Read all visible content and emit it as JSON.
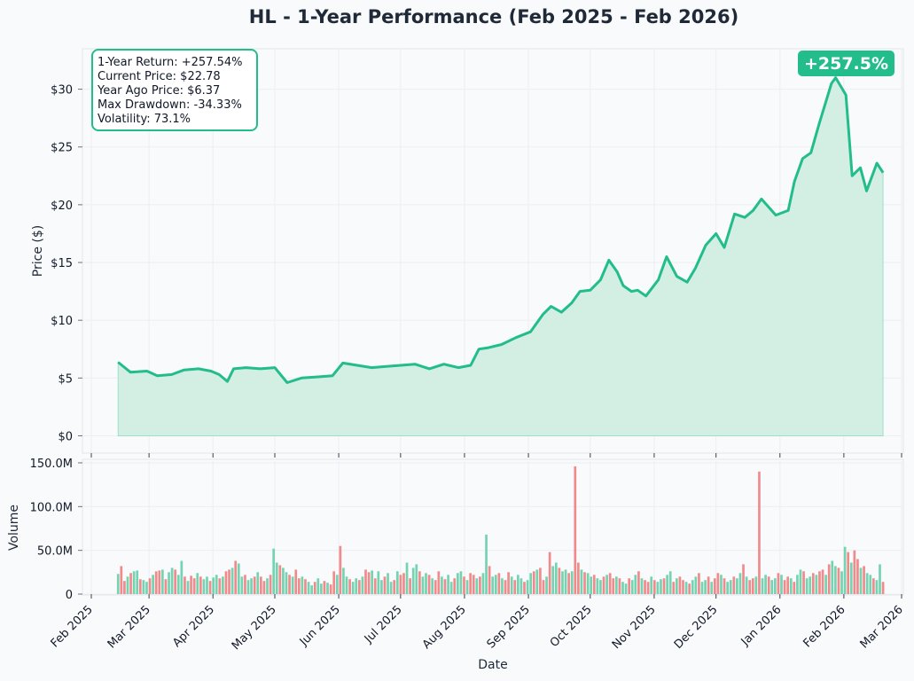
{
  "title": "HL - 1-Year Performance (Feb 2025 - Feb 2026)",
  "colors": {
    "accent": "#22bd8a",
    "fill": "#d3efe4",
    "up": "#6ed1ad",
    "down": "#f08585",
    "background": "#f8fafc",
    "grid": "#eceff3"
  },
  "stats_box": {
    "lines": [
      "1-Year Return: +257.54%",
      "Current Price: $22.78",
      "Year Ago Price: $6.37",
      "Max Drawdown: -34.33%",
      "Volatility: 73.1%"
    ]
  },
  "badge": "+257.5%",
  "chart_data": [
    {
      "type": "area",
      "ylabel": "Price ($)",
      "ylim": [
        -1.5,
        33.5
      ],
      "yticks": [
        0,
        5,
        10,
        15,
        20,
        25,
        30
      ],
      "ytick_labels": [
        "$0",
        "$5",
        "$10",
        "$15",
        "$20",
        "$25",
        "$30"
      ],
      "grid": true,
      "series": [
        {
          "x": [
            "2025-02-14",
            "2025-02-20",
            "2025-02-28",
            "2025-03-05",
            "2025-03-12",
            "2025-03-18",
            "2025-03-25",
            "2025-03-31",
            "2025-04-04",
            "2025-04-08",
            "2025-04-11",
            "2025-04-17",
            "2025-04-24",
            "2025-05-01",
            "2025-05-07",
            "2025-05-14",
            "2025-05-22",
            "2025-05-29",
            "2025-06-03",
            "2025-06-10",
            "2025-06-17",
            "2025-06-24",
            "2025-07-01",
            "2025-07-08",
            "2025-07-15",
            "2025-07-22",
            "2025-07-29",
            "2025-08-04",
            "2025-08-08",
            "2025-08-12",
            "2025-08-19",
            "2025-08-26",
            "2025-09-02",
            "2025-09-08",
            "2025-09-12",
            "2025-09-17",
            "2025-09-22",
            "2025-09-26",
            "2025-10-01",
            "2025-10-06",
            "2025-10-10",
            "2025-10-14",
            "2025-10-17",
            "2025-10-21",
            "2025-10-24",
            "2025-10-28",
            "2025-11-03",
            "2025-11-07",
            "2025-11-12",
            "2025-11-17",
            "2025-11-21",
            "2025-11-26",
            "2025-12-01",
            "2025-12-05",
            "2025-12-10",
            "2025-12-15",
            "2025-12-19",
            "2025-12-23",
            "2025-12-30",
            "2026-01-05",
            "2026-01-08",
            "2026-01-12",
            "2026-01-16",
            "2026-01-20",
            "2026-01-26",
            "2026-01-28",
            "2026-02-02",
            "2026-02-05",
            "2026-02-09",
            "2026-02-12",
            "2026-02-17",
            "2026-02-20"
          ],
          "values": [
            6.37,
            5.5,
            5.6,
            5.2,
            5.3,
            5.7,
            5.8,
            5.6,
            5.3,
            4.7,
            5.8,
            5.9,
            5.8,
            5.9,
            4.6,
            5.0,
            5.1,
            5.2,
            6.3,
            6.1,
            5.9,
            6.0,
            6.1,
            6.2,
            5.8,
            6.2,
            5.9,
            6.1,
            7.5,
            7.6,
            7.9,
            8.5,
            9.0,
            10.5,
            11.2,
            10.7,
            11.5,
            12.5,
            12.6,
            13.5,
            15.2,
            14.2,
            13.0,
            12.5,
            12.6,
            12.1,
            13.5,
            15.5,
            13.8,
            13.3,
            14.5,
            16.5,
            17.5,
            16.3,
            19.2,
            18.9,
            19.5,
            20.5,
            19.1,
            19.5,
            22.0,
            24.0,
            24.5,
            27.0,
            30.5,
            31.0,
            29.5,
            22.5,
            23.2,
            21.2,
            23.6,
            22.78
          ]
        }
      ]
    },
    {
      "type": "bar",
      "xlabel": "Date",
      "ylabel": "Volume",
      "ylim": [
        0,
        152000000
      ],
      "yticks": [
        0,
        50000000,
        100000000,
        150000000
      ],
      "ytick_labels": [
        "0",
        "50.0M",
        "100.0M",
        "150.0M"
      ],
      "xticks": [
        "2025-02-01",
        "2025-03-01",
        "2025-04-01",
        "2025-05-01",
        "2025-06-01",
        "2025-07-01",
        "2025-08-01",
        "2025-09-01",
        "2025-10-01",
        "2025-11-01",
        "2025-12-01",
        "2026-01-01",
        "2026-02-01",
        "2026-03-01"
      ],
      "xtick_labels": [
        "Feb 2025",
        "Mar 2025",
        "Apr 2025",
        "May 2025",
        "Jun 2025",
        "Jul 2025",
        "Aug 2025",
        "Sep 2025",
        "Oct 2025",
        "Nov 2025",
        "Dec 2025",
        "Jan 2026",
        "Feb 2026",
        "Mar 2026"
      ],
      "volume": [
        23,
        32,
        15,
        20,
        24,
        26,
        27,
        17,
        16,
        14,
        18,
        22,
        26,
        27,
        28,
        17,
        25,
        30,
        28,
        22,
        38,
        20,
        15,
        21,
        18,
        24,
        20,
        17,
        20,
        15,
        19,
        22,
        18,
        20,
        26,
        28,
        30,
        38,
        35,
        20,
        22,
        16,
        18,
        20,
        25,
        20,
        15,
        18,
        22,
        52,
        36,
        33,
        30,
        25,
        22,
        20,
        28,
        18,
        20,
        17,
        14,
        10,
        14,
        18,
        12,
        15,
        13,
        11,
        26,
        22,
        55,
        30,
        20,
        17,
        14,
        18,
        16,
        20,
        28,
        25,
        27,
        18,
        26,
        16,
        20,
        24,
        14,
        16,
        26,
        22,
        24,
        36,
        18,
        30,
        34,
        26,
        20,
        24,
        22,
        18,
        16,
        26,
        20,
        17,
        22,
        14,
        18,
        24,
        26,
        20,
        16,
        24,
        22,
        18,
        20,
        24,
        68,
        32,
        20,
        22,
        24,
        18,
        16,
        25,
        20,
        16,
        22,
        18,
        14,
        16,
        24,
        26,
        28,
        30,
        16,
        20,
        48,
        32,
        36,
        30,
        26,
        28,
        24,
        26,
        146,
        36,
        28,
        25,
        24,
        20,
        22,
        18,
        16,
        20,
        22,
        24,
        18,
        20,
        18,
        14,
        12,
        18,
        16,
        22,
        26,
        18,
        16,
        14,
        20,
        16,
        14,
        17,
        18,
        22,
        26,
        14,
        18,
        20,
        16,
        14,
        12,
        16,
        20,
        24,
        14,
        16,
        20,
        14,
        18,
        24,
        22,
        18,
        14,
        16,
        20,
        18,
        24,
        34,
        20,
        16,
        18,
        20,
        140,
        18,
        22,
        20,
        16,
        18,
        24,
        22,
        16,
        20,
        18,
        14,
        22,
        28,
        26,
        18,
        20,
        24,
        22,
        26,
        28,
        22,
        34,
        38,
        32,
        30,
        26,
        54,
        48,
        36,
        50,
        40,
        30,
        32,
        24,
        22,
        18,
        16,
        34,
        14
      ]
    }
  ]
}
